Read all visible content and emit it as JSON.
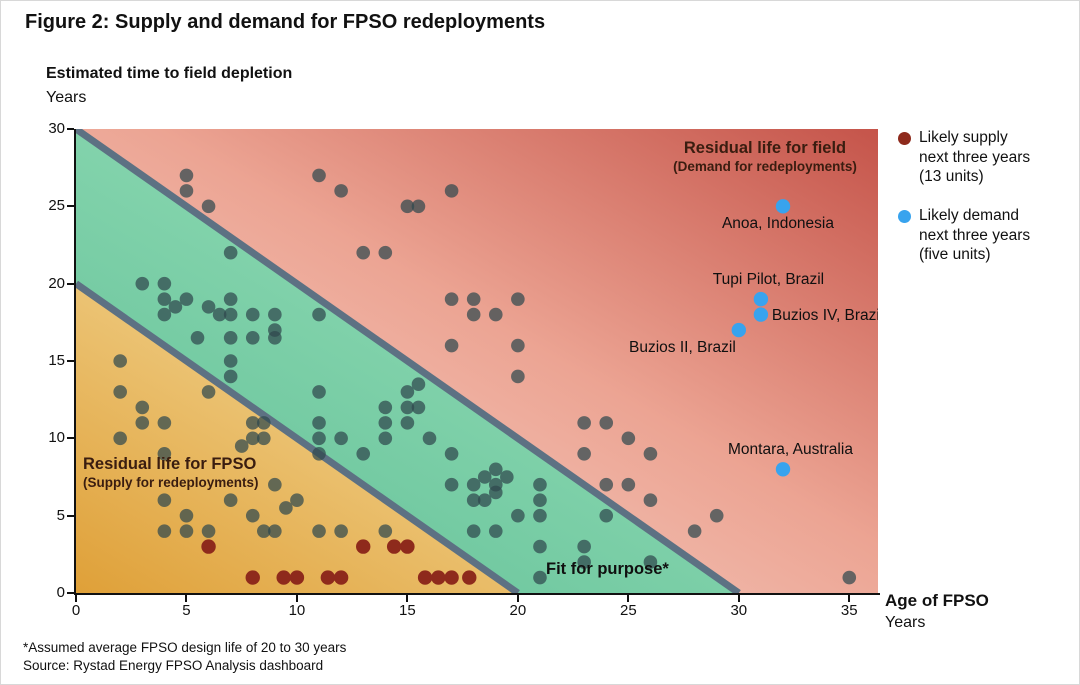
{
  "title": "Figure 2: Supply and demand for FPSO redeployments",
  "y_axis": {
    "title": "Estimated time to field depletion",
    "unit": "Years",
    "ticks": [
      0,
      5,
      10,
      15,
      20,
      25,
      30
    ]
  },
  "x_axis": {
    "title": "Age of FPSO",
    "unit": "Years",
    "ticks": [
      0,
      5,
      10,
      15,
      20,
      25,
      30,
      35
    ]
  },
  "regions": {
    "field": {
      "line1": "Residual life for field",
      "line2": "(Demand for redeployments)"
    },
    "fpso": {
      "line1": "Residual life for FPSO",
      "line2": "(Supply for redeployments)"
    },
    "band": "Fit for purpose*"
  },
  "legend": [
    {
      "label": "Likely supply\nnext three years\n(13 units)",
      "color": "#8e2a1c"
    },
    {
      "label": "Likely demand\nnext three years\n(five units)",
      "color": "#38a3ee"
    }
  ],
  "footnotes": [
    "*Assumed average FPSO design life of 20 to 30 years",
    "Source: Rystad Energy FPSO Analysis dashboard"
  ],
  "colors": {
    "supply_red": "#8e2a1c",
    "demand_blue": "#38a3ee",
    "fleet_gray": "rgba(47,72,78,0.72)",
    "boundary_line": "#5d7183",
    "axis": "#111111"
  },
  "chart_data": {
    "type": "scatter",
    "title": "Supply and demand for FPSO redeployments",
    "xlabel": "Age of FPSO (Years)",
    "ylabel": "Estimated time to field depletion (Years)",
    "xlim": [
      0,
      36.3
    ],
    "ylim": [
      0,
      30
    ],
    "grid": false,
    "legend_position": "right",
    "boundary_lines": [
      {
        "x1": 0,
        "y1": 30,
        "x2": 30,
        "y2": 0
      },
      {
        "x1": 0,
        "y1": 20,
        "x2": 20,
        "y2": 0
      }
    ],
    "series": [
      {
        "name": "FPSO fleet (age vs field depletion)",
        "marker": "gray-dot",
        "points": [
          [
            5,
            27
          ],
          [
            11,
            27
          ],
          [
            5,
            26
          ],
          [
            12,
            26
          ],
          [
            17,
            26
          ],
          [
            6,
            25
          ],
          [
            15,
            25
          ],
          [
            15.5,
            25
          ],
          [
            7,
            22
          ],
          [
            13,
            22
          ],
          [
            14,
            22
          ],
          [
            3,
            20
          ],
          [
            4,
            20
          ],
          [
            4,
            19
          ],
          [
            5,
            19
          ],
          [
            7,
            19
          ],
          [
            17,
            19
          ],
          [
            18,
            19
          ],
          [
            20,
            19
          ],
          [
            4.5,
            18.5
          ],
          [
            6,
            18.5
          ],
          [
            4,
            18
          ],
          [
            6.5,
            18
          ],
          [
            7,
            18
          ],
          [
            8,
            18
          ],
          [
            9,
            18
          ],
          [
            11,
            18
          ],
          [
            18,
            18
          ],
          [
            19,
            18
          ],
          [
            9,
            17
          ],
          [
            5.5,
            16.5
          ],
          [
            7,
            16.5
          ],
          [
            8,
            16.5
          ],
          [
            9,
            16.5
          ],
          [
            17,
            16
          ],
          [
            20,
            16
          ],
          [
            2,
            15
          ],
          [
            7,
            15
          ],
          [
            20,
            14
          ],
          [
            7,
            14
          ],
          [
            15.5,
            13.5
          ],
          [
            2,
            13
          ],
          [
            6,
            13
          ],
          [
            11,
            13
          ],
          [
            15,
            13
          ],
          [
            3,
            12
          ],
          [
            14,
            12
          ],
          [
            15,
            12
          ],
          [
            15.5,
            12
          ],
          [
            3,
            11
          ],
          [
            4,
            11
          ],
          [
            8,
            11
          ],
          [
            8.5,
            11
          ],
          [
            11,
            11
          ],
          [
            14,
            11
          ],
          [
            15,
            11
          ],
          [
            23,
            11
          ],
          [
            24,
            11
          ],
          [
            2,
            10
          ],
          [
            8,
            10
          ],
          [
            8.5,
            10
          ],
          [
            11,
            10
          ],
          [
            12,
            10
          ],
          [
            14,
            10
          ],
          [
            16,
            10
          ],
          [
            25,
            10
          ],
          [
            7.5,
            9.5
          ],
          [
            4,
            9
          ],
          [
            11,
            9
          ],
          [
            13,
            9
          ],
          [
            17,
            9
          ],
          [
            23,
            9
          ],
          [
            26,
            9
          ],
          [
            19,
            8
          ],
          [
            18.5,
            7.5
          ],
          [
            19.5,
            7.5
          ],
          [
            9,
            7
          ],
          [
            17,
            7
          ],
          [
            18,
            7
          ],
          [
            19,
            7
          ],
          [
            21,
            7
          ],
          [
            24,
            7
          ],
          [
            25,
            7
          ],
          [
            19,
            6.5
          ],
          [
            4,
            6
          ],
          [
            7,
            6
          ],
          [
            10,
            6
          ],
          [
            18,
            6
          ],
          [
            18.5,
            6
          ],
          [
            21,
            6
          ],
          [
            26,
            6
          ],
          [
            9.5,
            5.5
          ],
          [
            5,
            5
          ],
          [
            8,
            5
          ],
          [
            20,
            5
          ],
          [
            21,
            5
          ],
          [
            24,
            5
          ],
          [
            29,
            5
          ],
          [
            4,
            4
          ],
          [
            5,
            4
          ],
          [
            6,
            4
          ],
          [
            8.5,
            4
          ],
          [
            9,
            4
          ],
          [
            11,
            4
          ],
          [
            12,
            4
          ],
          [
            14,
            4
          ],
          [
            18,
            4
          ],
          [
            19,
            4
          ],
          [
            28,
            4
          ],
          [
            21,
            3
          ],
          [
            23,
            3
          ],
          [
            23,
            2
          ],
          [
            26,
            2
          ],
          [
            21,
            1
          ],
          [
            35,
            1
          ]
        ]
      },
      {
        "name": "Likely supply next three years (13 units)",
        "marker": "dark-red-dot",
        "points": [
          [
            6,
            3
          ],
          [
            13,
            3
          ],
          [
            14.4,
            3
          ],
          [
            15,
            3
          ],
          [
            8,
            1
          ],
          [
            9.4,
            1
          ],
          [
            10,
            1
          ],
          [
            11.4,
            1
          ],
          [
            12,
            1
          ],
          [
            15.8,
            1
          ],
          [
            16.4,
            1
          ],
          [
            17,
            1
          ],
          [
            17.8,
            1
          ]
        ]
      },
      {
        "name": "Likely demand next three years (five units)",
        "marker": "blue-dot",
        "points": [
          {
            "x": 32,
            "y": 25,
            "label": "Anoa, Indonesia",
            "label_side": "below"
          },
          {
            "x": 31,
            "y": 19,
            "label": "Tupi Pilot, Brazil",
            "label_side": "above"
          },
          {
            "x": 31,
            "y": 18,
            "label": "Buzios IV, Brazil",
            "label_side": "right"
          },
          {
            "x": 30,
            "y": 17,
            "label": "Buzios II, Brazil",
            "label_side": "below-left"
          },
          {
            "x": 32,
            "y": 8,
            "label": "Montara, Australia",
            "label_side": "above"
          }
        ]
      }
    ]
  }
}
